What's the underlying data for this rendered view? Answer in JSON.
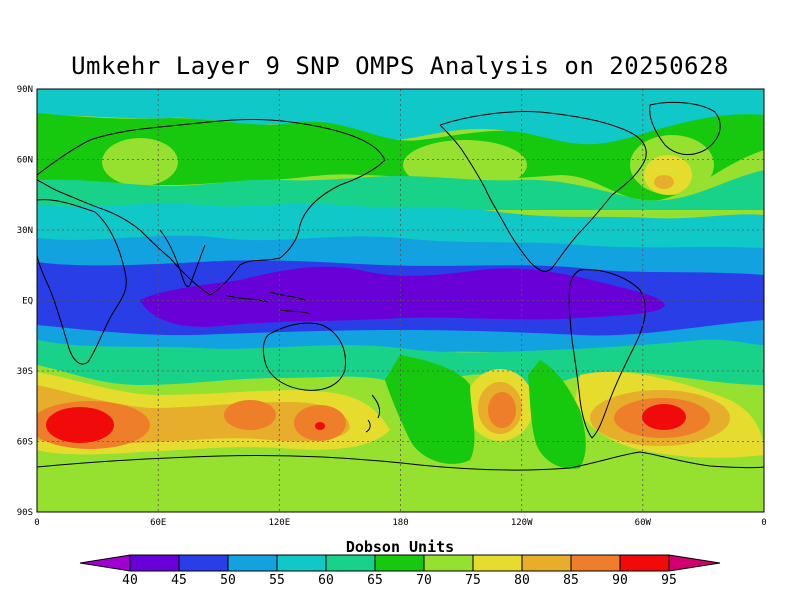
{
  "title": "Umkehr Layer 9 SNP OMPS Analysis on 20250628",
  "map": {
    "lat_ticks": [
      "90N",
      "60N",
      "30N",
      "EQ",
      "30S",
      "60S",
      "90S"
    ],
    "lon_ticks": [
      "0",
      "60E",
      "120E",
      "180",
      "120W",
      "60W",
      "0"
    ],
    "grid": "dashed at 30° lat, 60° lon",
    "projection": "equirectangular"
  },
  "colorbar": {
    "title": "Dobson Units",
    "levels": [
      "40",
      "45",
      "50",
      "55",
      "60",
      "65",
      "70",
      "75",
      "80",
      "85",
      "90",
      "95"
    ],
    "colors": [
      "#a000d0",
      "#6a00d8",
      "#2a3ee8",
      "#12a2e0",
      "#10c8c8",
      "#18d28a",
      "#16c80e",
      "#96e030",
      "#e6dc2e",
      "#e6ae2a",
      "#ee7e2a",
      "#f00a0a",
      "#d2006e"
    ]
  },
  "field_colors": {
    "c35": "#a000d0",
    "c40": "#6a00d8",
    "c45": "#2a3ee8",
    "c50": "#12a2e0",
    "c55": "#10c8c8",
    "c60": "#18d28a",
    "c65": "#16c80e",
    "c70": "#96e030",
    "c75": "#e6dc2e",
    "c80": "#e6ae2a",
    "c85": "#ee7e2a",
    "c90": "#f00a0a"
  }
}
